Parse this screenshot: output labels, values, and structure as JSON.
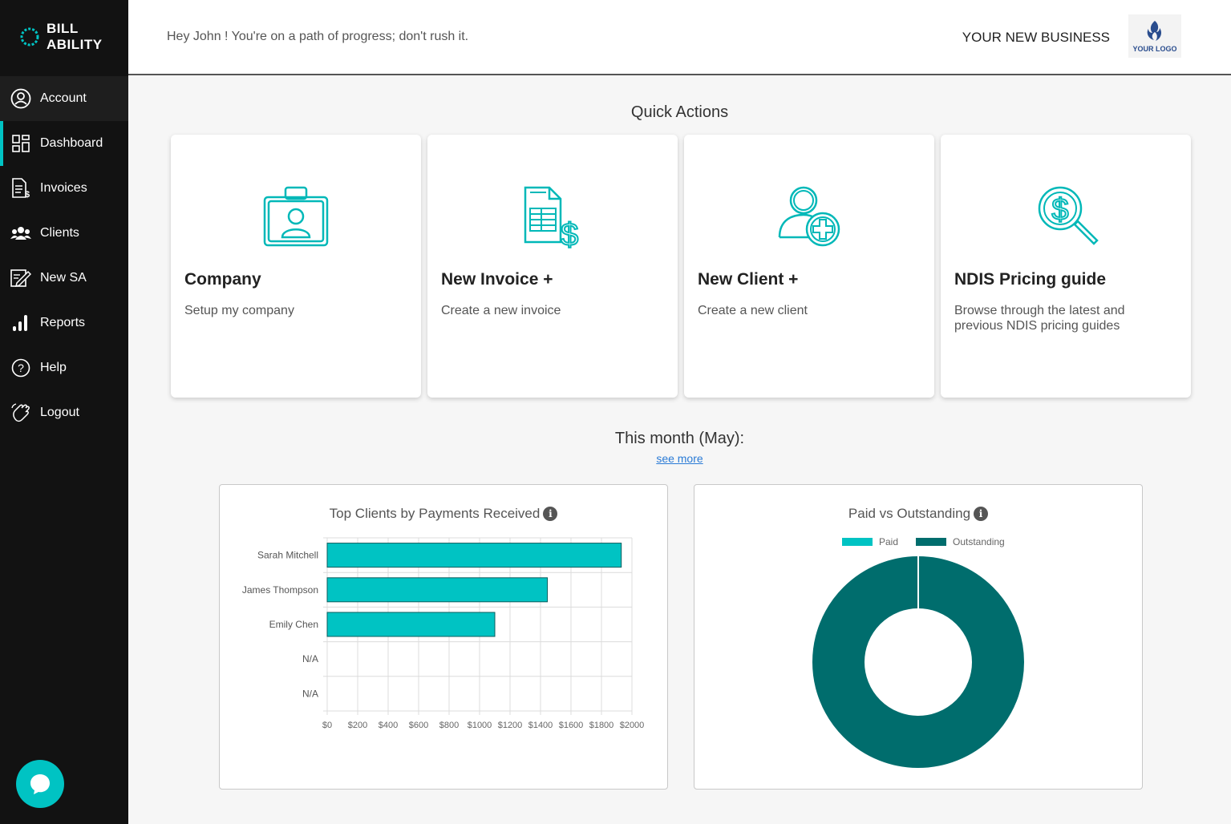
{
  "brand": {
    "line1": "BILL",
    "line2": "ABILITY"
  },
  "sidebar": {
    "items": [
      {
        "label": "Account"
      },
      {
        "label": "Dashboard"
      },
      {
        "label": "Invoices"
      },
      {
        "label": "Clients"
      },
      {
        "label": "New SA"
      },
      {
        "label": "Reports"
      },
      {
        "label": "Help"
      },
      {
        "label": "Logout"
      }
    ]
  },
  "header": {
    "greeting": "Hey John ! You're on a path of progress; don't rush it.",
    "business_name": "YOUR NEW BUSINESS",
    "logo_text": "YOUR LOGO"
  },
  "quick_actions": {
    "title": "Quick Actions",
    "cards": [
      {
        "title": "Company",
        "description": "Setup my company",
        "icon": "company-id-card-icon"
      },
      {
        "title": "New Invoice +",
        "description": "Create a new invoice",
        "icon": "invoice-document-icon"
      },
      {
        "title": "New Client +",
        "description": "Create a new client",
        "icon": "add-user-icon"
      },
      {
        "title": "NDIS Pricing guide",
        "description": "Browse through the latest and previous NDIS pricing guides",
        "icon": "dollar-search-icon"
      }
    ]
  },
  "month_summary": {
    "title": "This month (May):",
    "see_more": "see more"
  },
  "colors": {
    "accent": "#00c3c3",
    "dark_teal": "#006d6d",
    "sidebar_bg": "#121212"
  },
  "chart_data": [
    {
      "type": "bar",
      "orientation": "horizontal",
      "title": "Top Clients by Payments Received",
      "categories": [
        "Sarah Mitchell",
        "James Thompson",
        "Emily Chen",
        "N/A",
        "N/A"
      ],
      "values": [
        1930,
        1445,
        1100,
        0,
        0
      ],
      "xlim": [
        0,
        2000
      ],
      "x_ticks": [
        "$0",
        "$200",
        "$400",
        "$600",
        "$800",
        "$1000",
        "$1200",
        "$1400",
        "$1600",
        "$1800",
        "$2000"
      ],
      "grid": true,
      "color": "#00c3c3"
    },
    {
      "type": "pie",
      "donut": true,
      "title": "Paid vs Outstanding",
      "legend": "top",
      "series": [
        {
          "name": "Paid",
          "value": 0,
          "color": "#00c3c3"
        },
        {
          "name": "Outstanding",
          "value": 100,
          "color": "#006d6d"
        }
      ]
    }
  ]
}
